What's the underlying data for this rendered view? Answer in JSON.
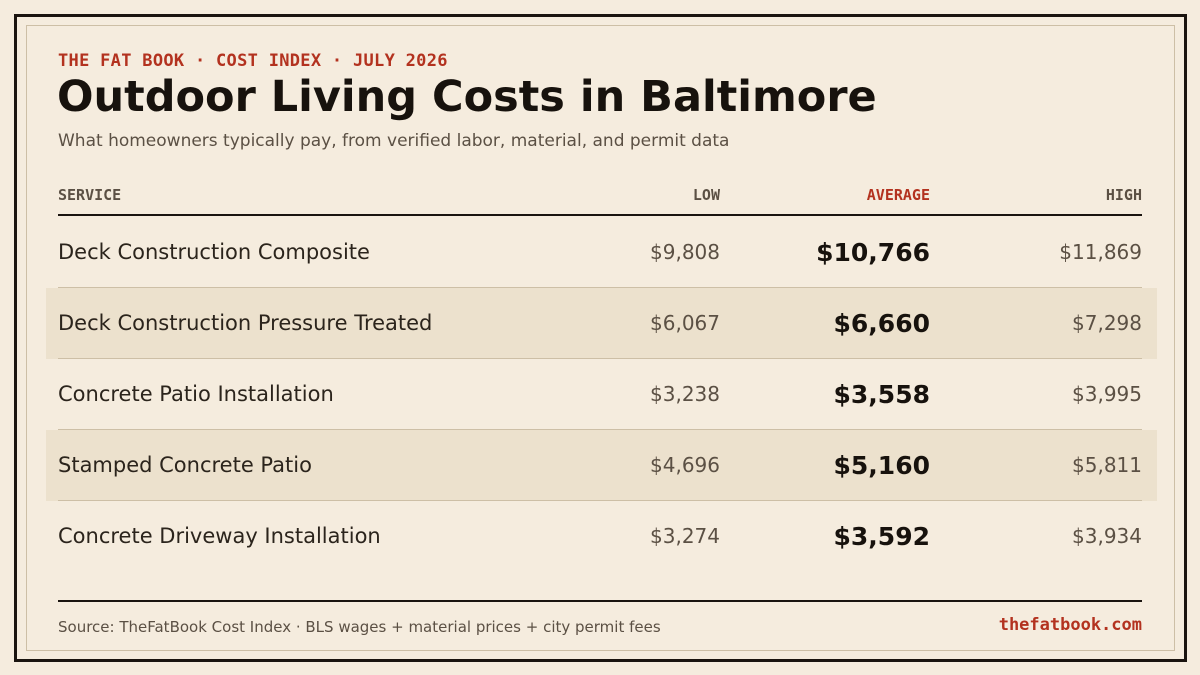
{
  "header": {
    "kicker": "THE FAT BOOK · COST INDEX · JULY 2026",
    "title": "Outdoor Living Costs in Baltimore",
    "subtitle": "What homeowners typically pay, from verified labor, material, and permit data"
  },
  "table": {
    "columns": {
      "service": "SERVICE",
      "low": "LOW",
      "average": "AVERAGE",
      "high": "HIGH"
    },
    "rows": [
      {
        "service": "Deck Construction Composite",
        "low": "$9,808",
        "average": "$10,766",
        "high": "$11,869"
      },
      {
        "service": "Deck Construction Pressure Treated",
        "low": "$6,067",
        "average": "$6,660",
        "high": "$7,298"
      },
      {
        "service": "Concrete Patio Installation",
        "low": "$3,238",
        "average": "$3,558",
        "high": "$3,995"
      },
      {
        "service": "Stamped Concrete Patio",
        "low": "$4,696",
        "average": "$5,160",
        "high": "$5,811"
      },
      {
        "service": "Concrete Driveway Installation",
        "low": "$3,274",
        "average": "$3,592",
        "high": "$3,934"
      }
    ]
  },
  "footer": {
    "source": "Source: TheFatBook Cost Index · BLS wages + material prices + city permit fees",
    "site": "thefatbook.com"
  },
  "colors": {
    "background": "#f5ecde",
    "accent": "#b3321f",
    "ink": "#17120d",
    "row_shade": "#ece1cd"
  }
}
